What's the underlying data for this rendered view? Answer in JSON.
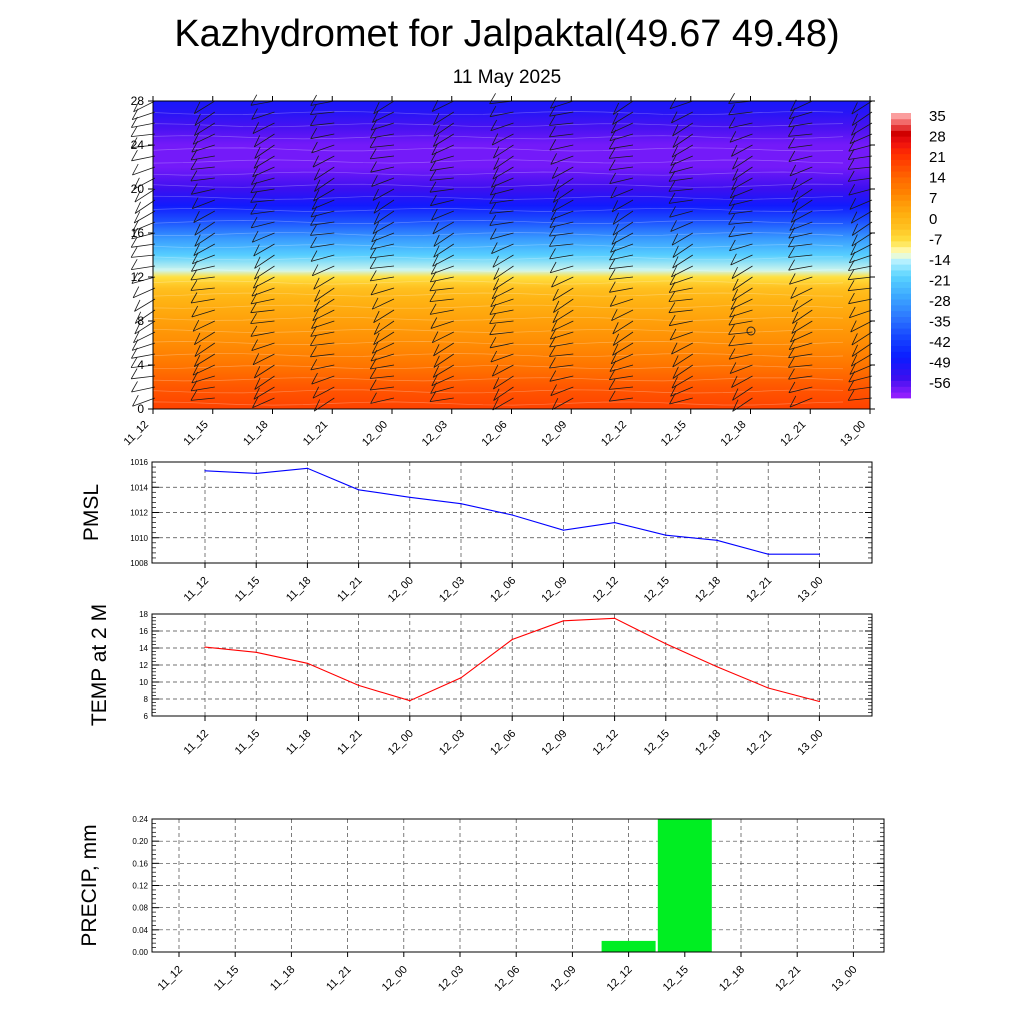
{
  "title": "Kazhydromet for Jalpaktal(49.67 49.48)",
  "subtitle": "11 May 2025",
  "time_labels": [
    "11_12",
    "11_15",
    "11_18",
    "11_21",
    "12_00",
    "12_03",
    "12_06",
    "12_09",
    "12_12",
    "12_15",
    "12_18",
    "12_21",
    "13_00"
  ],
  "chart_data": [
    {
      "type": "heatmap",
      "description_free": true,
      "x": [
        "11_12",
        "11_15",
        "11_18",
        "11_21",
        "12_00",
        "12_03",
        "12_06",
        "12_09",
        "12_12",
        "12_15",
        "12_18",
        "12_21",
        "13_00"
      ],
      "y_ticks": [
        0,
        4,
        8,
        12,
        16,
        20,
        24,
        28
      ],
      "ylim": [
        0,
        28
      ],
      "colorbar": {
        "labels": [
          "35",
          "28",
          "21",
          "14",
          "7",
          "0",
          "-7",
          "-14",
          "-21",
          "-28",
          "-35",
          "-42",
          "-49",
          "-56"
        ],
        "range": [
          -63,
          35
        ]
      },
      "temperature_profile": [
        {
          "level": 0,
          "value": 18
        },
        {
          "level": 2,
          "value": 15
        },
        {
          "level": 4,
          "value": 10
        },
        {
          "level": 6,
          "value": 6
        },
        {
          "level": 8,
          "value": 3
        },
        {
          "level": 10,
          "value": -1
        },
        {
          "level": 11,
          "value": -4
        },
        {
          "level": 12,
          "value": -9
        },
        {
          "level": 12.6,
          "value": -15
        },
        {
          "level": 14,
          "value": -22
        },
        {
          "level": 15.5,
          "value": -30
        },
        {
          "level": 17,
          "value": -40
        },
        {
          "level": 18.5,
          "value": -50
        },
        {
          "level": 20,
          "value": -56
        },
        {
          "level": 22,
          "value": -60
        },
        {
          "level": 24,
          "value": -60
        },
        {
          "level": 25.5,
          "value": -57
        },
        {
          "level": 27,
          "value": -53
        },
        {
          "level": 28,
          "value": -51
        }
      ],
      "wind_levels": [
        1,
        2,
        3,
        4,
        5,
        6,
        7,
        8,
        9,
        10,
        11,
        12,
        13,
        14,
        15,
        16,
        17,
        18,
        19,
        20,
        21,
        22,
        23,
        24,
        25,
        26,
        27,
        28
      ]
    },
    {
      "type": "line",
      "ylabel": "PMSL",
      "x": [
        "11_12",
        "11_15",
        "11_18",
        "11_21",
        "12_00",
        "12_03",
        "12_06",
        "12_09",
        "12_12",
        "12_15",
        "12_18",
        "12_21",
        "13_00"
      ],
      "y": [
        1015.3,
        1015.1,
        1015.5,
        1013.8,
        1013.2,
        1012.7,
        1011.8,
        1010.6,
        1011.2,
        1010.2,
        1009.8,
        1008.7,
        1008.7
      ],
      "ylim": [
        1008,
        1016
      ],
      "y_ticks": [
        1008,
        1010,
        1012,
        1014,
        1016
      ],
      "color": "#0000ff"
    },
    {
      "type": "line",
      "ylabel": "TEMP at 2 M",
      "x": [
        "11_12",
        "11_15",
        "11_18",
        "11_21",
        "12_00",
        "12_03",
        "12_06",
        "12_09",
        "12_12",
        "12_15",
        "12_18",
        "12_21",
        "13_00"
      ],
      "y": [
        14.1,
        13.5,
        12.2,
        9.6,
        7.8,
        10.5,
        15.0,
        17.2,
        17.5,
        14.5,
        11.8,
        9.3,
        7.7
      ],
      "ylim": [
        6,
        18
      ],
      "y_ticks": [
        6,
        8,
        10,
        12,
        14,
        16,
        18
      ],
      "color": "#ff0000"
    },
    {
      "type": "bar",
      "ylabel": "PRECIP, mm",
      "categories": [
        "11_12",
        "11_15",
        "11_18",
        "11_21",
        "12_00",
        "12_03",
        "12_06",
        "12_09",
        "12_12",
        "12_15",
        "12_18",
        "12_21",
        "13_00"
      ],
      "values": [
        0,
        0,
        0,
        0,
        0,
        0,
        0,
        0,
        0.02,
        0.24,
        0,
        0,
        0
      ],
      "ylim": [
        0,
        0.24
      ],
      "y_ticks": [
        "0.00",
        "0.04",
        "0.08",
        "0.12",
        "0.16",
        "0.20",
        "0.24"
      ],
      "color": "#00ee22"
    }
  ]
}
